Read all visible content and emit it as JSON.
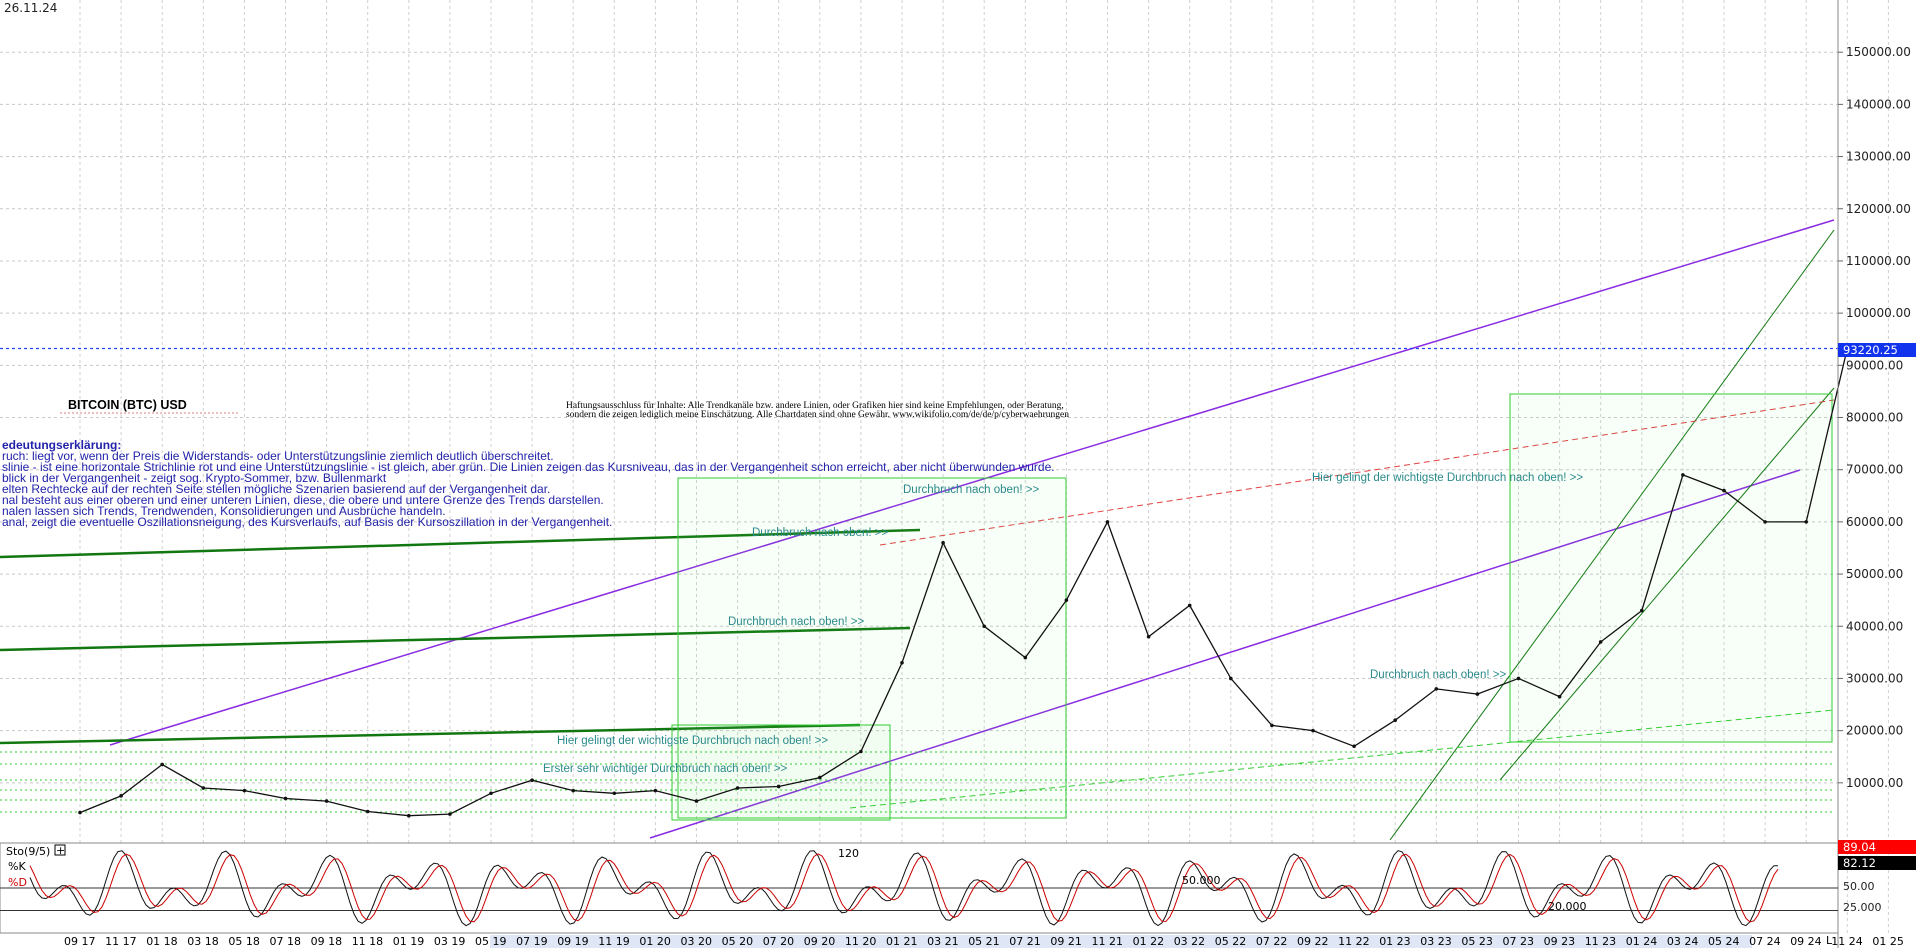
{
  "date_label": "26.11.24",
  "title": "BITCOIN (BTC) USD",
  "disclaimer": [
    "Haftungsausschluss für Inhalte: Alle Trendkanäle bzw. andere Linien, oder Grafiken hier sind keine Empfehlungen, oder Beratung,",
    "sondern die zeigen lediglich meine  Einschätzung. Alle Chartdaten sind ohne Gewähr.  www.wikifolio.com/de/de/p/cyberwaehrungen"
  ],
  "legend_lines": [
    "edeutungserklärung:",
    "ruch: liegt vor, wenn der Preis die Widerstands- oder Unterstützungslinie ziemlich deutlich überschreitet.",
    "slinie - ist eine horizontale Strichlinie rot und eine Unterstützungslinie - ist gleich, aber grün. Die Linien zeigen das Kursniveau, das in der Vergangenheit schon erreicht, aber nicht überwunden wurde.",
    "blick in der Vergangenheit - zeigt sog. Krypto-Sommer, bzw. Bullenmarkt",
    "elten Rechtecke auf der rechten Seite stellen mögliche Szenarien basierend auf der Vergangenheit dar.",
    "nal besteht aus einer oberen und einer unteren Linien, diese, die obere und untere Grenze des Trends darstellen.",
    "nalen lassen sich Trends, Trendwenden, Konsolidierungen und Ausbrüche handeln.",
    "anal, zeigt die eventuelle Oszillationsneigung, des Kursverlaufs, auf Basis der Kursoszillation in der Vergangenheit."
  ],
  "annotations": [
    "Durchbruch nach oben! >>",
    "Durchbruch nach oben! >>",
    "Durchbruch nach oben! >>",
    "Hier gelingt der wichtigste Durchbruch nach oben! >>",
    "Erster sehr wichtiger Durchbruch nach oben! >>",
    "Durchbruch nach oben! >>",
    "Hier gelingt der wichtigste Durchbruch nach oben! >>"
  ],
  "current_price_label": "93220.25",
  "stoch": {
    "title": "Sto(9/5)",
    "k_label": "%K",
    "d_label": "%D",
    "k_value": "89.04",
    "d_value": "82.12",
    "levels": [
      "50.00",
      "25.000"
    ],
    "inner_labels": [
      "50.000",
      "20.000"
    ],
    "caption_fragment": "120"
  },
  "x_axis_end_label": "L",
  "colors": {
    "price": "#111111",
    "purple_channel": "#8a2be2",
    "green_channel": "#22aa22",
    "resistance": "#e04040",
    "support": "#33cc33",
    "current_price": "#2244ff",
    "stoch_k": "#111111",
    "stoch_d": "#cc0000",
    "label_red": "#e00000"
  },
  "chart_data": {
    "type": "line",
    "title": "BITCOIN (BTC) USD",
    "x": [
      "09 17",
      "11 17",
      "01 18",
      "03 18",
      "05 18",
      "07 18",
      "09 18",
      "11 18",
      "01 19",
      "03 19",
      "05 19",
      "07 19",
      "09 19",
      "11 19",
      "01 20",
      "03 20",
      "05 20",
      "07 20",
      "09 20",
      "11 20",
      "01 21",
      "03 21",
      "05 21",
      "07 21",
      "09 21",
      "11 21",
      "01 22",
      "03 22",
      "05 22",
      "07 22",
      "09 22",
      "11 22",
      "01 23",
      "03 23",
      "05 23",
      "07 23",
      "09 23",
      "11 23",
      "01 24",
      "03 24",
      "05 24",
      "07 24",
      "09 24",
      "11 24",
      "01 25"
    ],
    "series": [
      {
        "values": [
          4300,
          7500,
          13500,
          9000,
          8500,
          7000,
          6500,
          4500,
          3700,
          4000,
          8000,
          10500,
          8500,
          8000,
          8500,
          6500,
          9000,
          9300,
          11000,
          16000,
          33000,
          56000,
          40000,
          34000,
          45000,
          60000,
          38000,
          44000,
          30000,
          21000,
          20000,
          17000,
          22000,
          28000,
          27000,
          30000,
          26500,
          37000,
          43000,
          69000,
          66000,
          60000,
          60000,
          93220,
          null
        ]
      }
    ],
    "y_ticks": [
      10000,
      20000,
      30000,
      40000,
      50000,
      60000,
      70000,
      80000,
      90000,
      100000,
      110000,
      120000,
      130000,
      140000,
      150000
    ],
    "ylim": [
      0,
      160000
    ],
    "current_price": 93220.25,
    "stochastic": {
      "title": "Sto(9/5)",
      "k": 89.04,
      "d": 82.12,
      "levels": [
        25,
        50
      ],
      "ylim": [
        0,
        100
      ]
    }
  }
}
